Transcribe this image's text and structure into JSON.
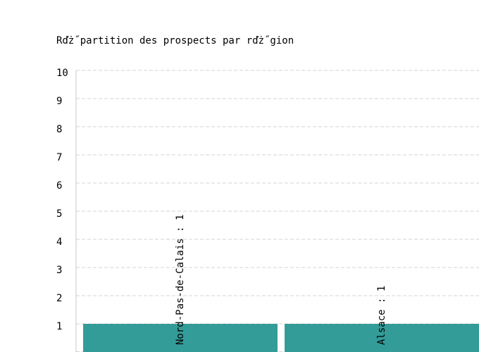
{
  "chart_data": {
    "type": "bar",
    "title": "Rďż˝partition des prospects par rďż˝gion",
    "categories": [
      "Nord-Pas-de-Calais",
      "Alsace"
    ],
    "values": [
      1,
      1
    ],
    "data_labels": [
      "Nord-Pas-de-Calais : 1",
      "Alsace : 1"
    ],
    "ylim": [
      0,
      10
    ],
    "yticks": [
      1,
      2,
      3,
      4,
      5,
      6,
      7,
      8,
      9,
      10
    ],
    "xlabel": "",
    "ylabel": "",
    "grid": true,
    "colors": {
      "bar": "#339c98",
      "grid": "#d3d3d3",
      "axis": "#c8c8c8",
      "text": "#000000"
    }
  }
}
